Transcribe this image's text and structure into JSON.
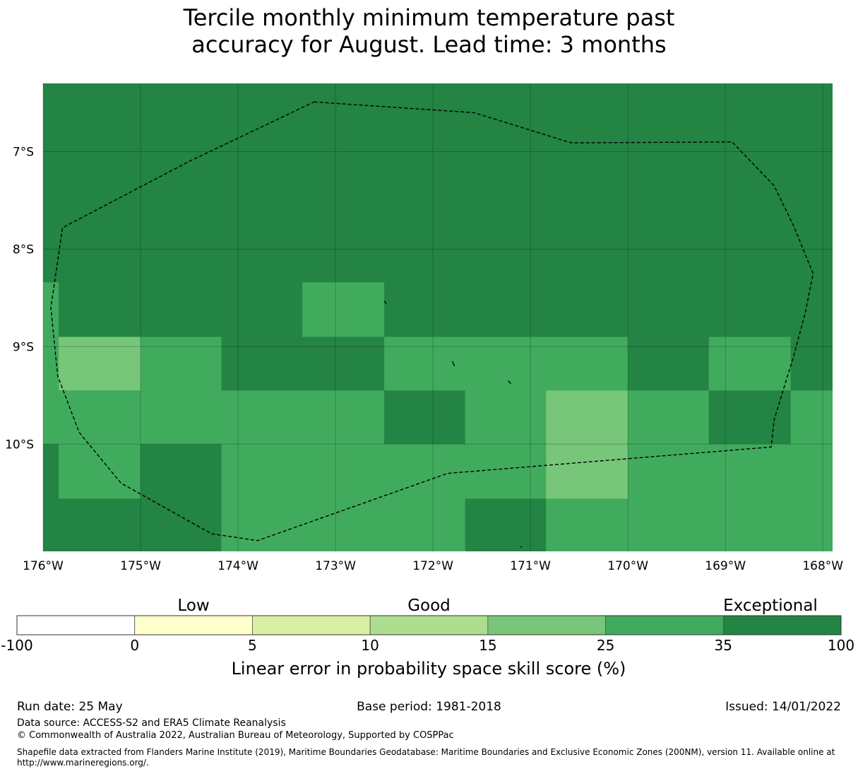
{
  "title": {
    "line1": "Tercile monthly minimum temperature past",
    "line2": "accuracy for August. Lead time: 3 months"
  },
  "map": {
    "lon_range": [
      -176,
      -167.9
    ],
    "lat_range": [
      -11.1,
      -6.3
    ],
    "lon_ticks": [
      {
        "value": -176,
        "label": "176°W"
      },
      {
        "value": -175,
        "label": "175°W"
      },
      {
        "value": -174,
        "label": "174°W"
      },
      {
        "value": -173,
        "label": "173°W"
      },
      {
        "value": -172,
        "label": "172°W"
      },
      {
        "value": -171,
        "label": "171°W"
      },
      {
        "value": -170,
        "label": "170°W"
      },
      {
        "value": -169,
        "label": "169°W"
      },
      {
        "value": -168,
        "label": "168°W"
      }
    ],
    "lat_ticks": [
      {
        "value": -7,
        "label": "7°S"
      },
      {
        "value": -8,
        "label": "8°S"
      },
      {
        "value": -9,
        "label": "9°S"
      },
      {
        "value": -10,
        "label": "10°S"
      }
    ],
    "background_category": 6,
    "cells": [
      {
        "lon": [
          -176,
          -175.84
        ],
        "lat": [
          -8.34,
          -8.9
        ],
        "cat": 5
      },
      {
        "lon": [
          -173.34,
          -172.5
        ],
        "lat": [
          -8.34,
          -8.9
        ],
        "cat": 5
      },
      {
        "lon": [
          -176,
          -175.84
        ],
        "lat": [
          -8.9,
          -9.45
        ],
        "cat": 5
      },
      {
        "lon": [
          -175.84,
          -175.0
        ],
        "lat": [
          -8.9,
          -9.45
        ],
        "cat": 4
      },
      {
        "lon": [
          -175.0,
          -174.17
        ],
        "lat": [
          -8.9,
          -9.45
        ],
        "cat": 5
      },
      {
        "lon": [
          -172.5,
          -170.0
        ],
        "lat": [
          -8.9,
          -9.45
        ],
        "cat": 5
      },
      {
        "lon": [
          -169.17,
          -168.33
        ],
        "lat": [
          -8.9,
          -9.45
        ],
        "cat": 5
      },
      {
        "lon": [
          -176,
          -172.5
        ],
        "lat": [
          -9.45,
          -10.0
        ],
        "cat": 5
      },
      {
        "lon": [
          -171.67,
          -170.84
        ],
        "lat": [
          -9.45,
          -10.0
        ],
        "cat": 5
      },
      {
        "lon": [
          -170.84,
          -170.0
        ],
        "lat": [
          -9.45,
          -10.0
        ],
        "cat": 4
      },
      {
        "lon": [
          -170.0,
          -169.17
        ],
        "lat": [
          -9.45,
          -10.0
        ],
        "cat": 5
      },
      {
        "lon": [
          -168.33,
          -167.9
        ],
        "lat": [
          -9.45,
          -10.0
        ],
        "cat": 5
      },
      {
        "lon": [
          -175.84,
          -175.0
        ],
        "lat": [
          -10.0,
          -10.56
        ],
        "cat": 5
      },
      {
        "lon": [
          -174.17,
          -170.84
        ],
        "lat": [
          -10.0,
          -10.56
        ],
        "cat": 5
      },
      {
        "lon": [
          -170.84,
          -170.0
        ],
        "lat": [
          -10.0,
          -10.56
        ],
        "cat": 4
      },
      {
        "lon": [
          -170.0,
          -167.9
        ],
        "lat": [
          -10.0,
          -10.56
        ],
        "cat": 5
      },
      {
        "lon": [
          -174.17,
          -171.67
        ],
        "lat": [
          -10.56,
          -11.1
        ],
        "cat": 5
      },
      {
        "lon": [
          -170.84,
          -167.9
        ],
        "lat": [
          -10.56,
          -11.1
        ],
        "cat": 5
      }
    ],
    "eez_boundary": [
      [
        -173.22,
        -6.49
      ],
      [
        -171.58,
        -6.6
      ],
      [
        -170.58,
        -6.91
      ],
      [
        -168.93,
        -6.9
      ],
      [
        -168.5,
        -7.35
      ],
      [
        -168.3,
        -7.76
      ],
      [
        -168.1,
        -8.25
      ],
      [
        -168.18,
        -8.65
      ],
      [
        -168.3,
        -9.1
      ],
      [
        -168.5,
        -9.75
      ],
      [
        -168.53,
        -10.03
      ],
      [
        -171.85,
        -10.3
      ],
      [
        -173.8,
        -10.99
      ],
      [
        -174.27,
        -10.92
      ],
      [
        -175.2,
        -10.4
      ],
      [
        -175.63,
        -9.88
      ],
      [
        -175.85,
        -9.3
      ],
      [
        -175.92,
        -8.6
      ],
      [
        -175.8,
        -7.78
      ],
      [
        -174.5,
        -7.1
      ],
      [
        -173.22,
        -6.49
      ]
    ],
    "islands": [
      [
        [
          -172.5,
          -8.53
        ],
        [
          -172.48,
          -8.56
        ]
      ],
      [
        [
          -171.8,
          -9.15
        ],
        [
          -171.78,
          -9.2
        ]
      ],
      [
        [
          -171.23,
          -9.35
        ],
        [
          -171.2,
          -9.38
        ]
      ],
      [
        [
          -171.1,
          -11.05
        ],
        [
          -171.09,
          -11.06
        ]
      ]
    ]
  },
  "legend": {
    "category_labels": [
      {
        "text": "Low",
        "boundary_index": 1.5
      },
      {
        "text": "Good",
        "boundary_index": 3.5
      },
      {
        "text": "Exceptional",
        "boundary_index": 6.4
      }
    ],
    "boundaries": [
      "-100",
      "0",
      "5",
      "10",
      "15",
      "25",
      "35",
      "100"
    ],
    "colors": [
      "#ffffff",
      "#ffffcc",
      "#d9f0a3",
      "#addd8e",
      "#78c679",
      "#41ab5d",
      "#238443"
    ],
    "label": "Linear error in probability space skill score (%)"
  },
  "footer": {
    "run_date": "Run date: 25 May",
    "base_period": "Base period: 1981-2018",
    "issued": "Issued: 14/01/2022",
    "data_source": "Data source: ACCESS-S2 and ERA5 Climate Reanalysis",
    "copyright": "© Commonwealth of Australia 2022, Australian Bureau of Meteorology, Supported by COSPPac",
    "shapefile_note": "Shapefile data extracted from Flanders Marine Institute (2019), Maritime Boundaries Geodatabase: Maritime Boundaries and Exclusive Economic Zones (200NM), version 11. Available online at http://www.marineregions.org/."
  }
}
